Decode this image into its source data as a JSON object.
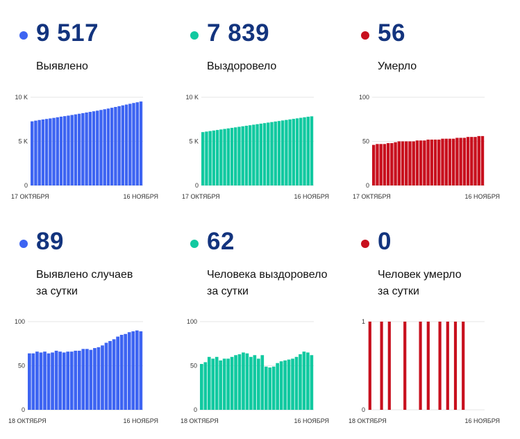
{
  "colors": {
    "detected": "#3d64f2",
    "recovered": "#11c9a0",
    "died": "#c8101e"
  },
  "panels": [
    {
      "id": "detected-total",
      "value": "9 517",
      "label": "Выявлено",
      "color": "#3d64f2"
    },
    {
      "id": "recovered-total",
      "value": "7 839",
      "label": "Выздоровело",
      "color": "#11c9a0"
    },
    {
      "id": "died-total",
      "value": "56",
      "label": "Умерло",
      "color": "#c8101e"
    },
    {
      "id": "detected-daily",
      "value": "89",
      "label": "Выявлено случаев\nза сутки",
      "color": "#3d64f2"
    },
    {
      "id": "recovered-daily",
      "value": "62",
      "label": "Человека выздоровело\nза сутки",
      "color": "#11c9a0"
    },
    {
      "id": "died-daily",
      "value": "0",
      "label": "Человек умерло\nза сутки",
      "color": "#c8101e"
    }
  ],
  "chart_data": [
    {
      "type": "bar",
      "series": [
        {
          "values": [
            7270,
            7350,
            7420,
            7480,
            7540,
            7600,
            7660,
            7730,
            7800,
            7860,
            7920,
            7990,
            8060,
            8130,
            8200,
            8270,
            8340,
            8410,
            8480,
            8560,
            8640,
            8720,
            8810,
            8900,
            8990,
            9080,
            9170,
            9260,
            9350,
            9430,
            9517
          ]
        }
      ],
      "ylim": [
        0,
        10000
      ],
      "yticks": [
        "0",
        "5 K",
        "10 K"
      ],
      "xstart": "17 ОКТЯБРЯ",
      "xend": "16 НОЯБРЯ"
    },
    {
      "type": "bar",
      "series": [
        {
          "values": [
            6050,
            6110,
            6170,
            6230,
            6290,
            6350,
            6410,
            6470,
            6530,
            6590,
            6650,
            6710,
            6770,
            6830,
            6890,
            6950,
            7010,
            7070,
            7130,
            7190,
            7250,
            7310,
            7370,
            7430,
            7490,
            7550,
            7610,
            7670,
            7730,
            7790,
            7839
          ]
        }
      ],
      "ylim": [
        0,
        10000
      ],
      "yticks": [
        "0",
        "5 K",
        "10 K"
      ],
      "xstart": "17 ОКТЯБРЯ",
      "xend": "16 НОЯБРЯ"
    },
    {
      "type": "bar",
      "series": [
        {
          "values": [
            46,
            47,
            47,
            47,
            48,
            48,
            49,
            50,
            50,
            50,
            50,
            50,
            51,
            51,
            51,
            52,
            52,
            52,
            52,
            53,
            53,
            53,
            53,
            54,
            54,
            54,
            55,
            55,
            55,
            56,
            56
          ]
        }
      ],
      "ylim": [
        0,
        100
      ],
      "yticks": [
        "0",
        "50",
        "100"
      ],
      "xstart": "17 ОКТЯБРЯ",
      "xend": "16 НОЯБРЯ"
    },
    {
      "type": "bar",
      "series": [
        {
          "values": [
            64,
            64,
            66,
            65,
            66,
            64,
            65,
            67,
            66,
            65,
            66,
            66,
            67,
            67,
            69,
            69,
            68,
            70,
            71,
            73,
            76,
            78,
            80,
            83,
            85,
            86,
            88,
            89,
            90,
            89
          ]
        }
      ],
      "ylim": [
        0,
        100
      ],
      "yticks": [
        "0",
        "50",
        "100"
      ],
      "xstart": "18 ОКТЯБРЯ",
      "xend": "16 НОЯБРЯ"
    },
    {
      "type": "bar",
      "series": [
        {
          "values": [
            52,
            54,
            60,
            58,
            60,
            56,
            58,
            58,
            60,
            62,
            63,
            65,
            64,
            60,
            62,
            58,
            62,
            49,
            48,
            49,
            53,
            55,
            56,
            57,
            58,
            60,
            63,
            66,
            65,
            62
          ]
        }
      ],
      "ylim": [
        0,
        100
      ],
      "yticks": [
        "0",
        "50",
        "100"
      ],
      "xstart": "18 ОКТЯБРЯ",
      "xend": "16 НОЯБРЯ"
    },
    {
      "type": "bar",
      "series": [
        {
          "values": [
            1,
            0,
            0,
            1,
            0,
            1,
            0,
            0,
            0,
            1,
            0,
            0,
            0,
            1,
            0,
            1,
            0,
            0,
            1,
            0,
            1,
            0,
            1,
            0,
            1,
            0,
            0,
            0,
            0,
            0
          ]
        }
      ],
      "ylim": [
        0,
        1
      ],
      "yticks": [
        "0",
        "1"
      ],
      "xstart": "18 ОКТЯБРЯ",
      "xend": "16 НОЯБРЯ"
    }
  ]
}
